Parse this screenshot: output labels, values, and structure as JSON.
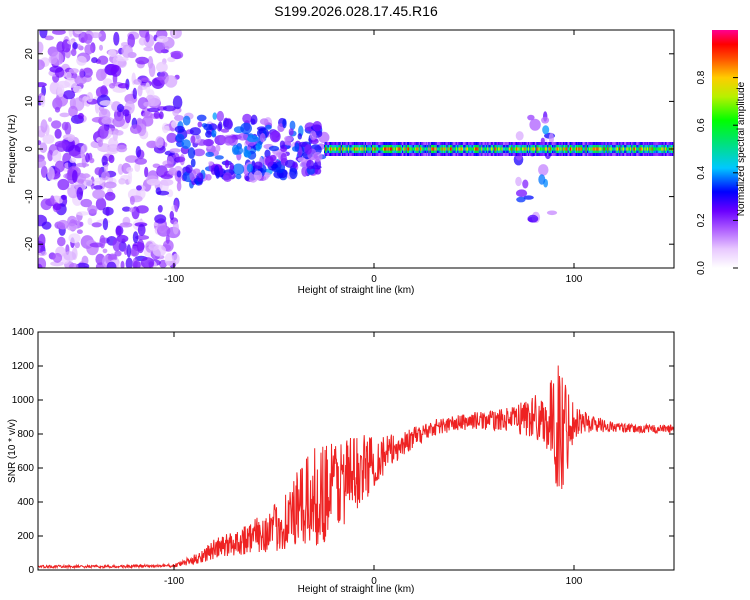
{
  "title": "S199.2026.028.17.45.R16",
  "colors": {
    "snr_line": "#ee2222",
    "axis": "#000000",
    "background": "#ffffff"
  },
  "chart_data": [
    {
      "type": "heatmap",
      "name": "spectrogram",
      "xlabel": "Height of straight line (km)",
      "ylabel": "Frequency (Hz)",
      "xlim": [
        -168,
        150
      ],
      "ylim": [
        -25,
        25
      ],
      "xticks": [
        -100,
        0,
        100
      ],
      "xtick_labels": [
        "-100",
        "0",
        "100"
      ],
      "yticks": [
        -20,
        -10,
        0,
        10,
        20
      ],
      "ytick_labels": [
        "-20",
        "-10",
        "0",
        "10",
        "20"
      ],
      "colorbar": {
        "label": "Normalized spectral amplitude",
        "range": [
          0.0,
          1.0
        ],
        "ticks": [
          0.0,
          0.2,
          0.4,
          0.6,
          0.8
        ],
        "tick_labels": [
          "0.0",
          "0.2",
          "0.4",
          "0.6",
          "0.8"
        ],
        "stops": [
          [
            0.0,
            "#ffffff"
          ],
          [
            0.08,
            "#e8c8ff"
          ],
          [
            0.16,
            "#b060ff"
          ],
          [
            0.24,
            "#6a00ff"
          ],
          [
            0.32,
            "#0000ff"
          ],
          [
            0.42,
            "#00c8ff"
          ],
          [
            0.52,
            "#00e080"
          ],
          [
            0.62,
            "#00ff00"
          ],
          [
            0.72,
            "#b8f000"
          ],
          [
            0.8,
            "#ffcc00"
          ],
          [
            0.88,
            "#ff5000"
          ],
          [
            0.94,
            "#ff0000"
          ],
          [
            1.0,
            "#ff0090"
          ]
        ]
      },
      "regions": [
        {
          "desc": "broadband noise",
          "x": [
            -168,
            -98
          ],
          "freq": [
            -25,
            25
          ],
          "amp": [
            0.05,
            0.28
          ]
        },
        {
          "desc": "converging noise",
          "x": [
            -98,
            -25
          ],
          "freq": [
            -8,
            8
          ],
          "amp": [
            0.1,
            0.4
          ]
        },
        {
          "desc": "narrow carrier",
          "x": [
            -25,
            150
          ],
          "freq": [
            -1.5,
            1.5
          ],
          "amp": [
            0.45,
            0.95
          ]
        },
        {
          "desc": "spike",
          "x": [
            72,
            90
          ],
          "freq": [
            -15,
            8
          ],
          "amp": [
            0.05,
            0.4
          ]
        }
      ]
    },
    {
      "type": "line",
      "name": "snr",
      "xlabel": "Height of straight line (km)",
      "ylabel": "SNR (10 * v/v)",
      "xlim": [
        -168,
        150
      ],
      "ylim": [
        0,
        1400
      ],
      "xticks": [
        -100,
        0,
        100
      ],
      "xtick_labels": [
        "-100",
        "0",
        "100"
      ],
      "yticks": [
        0,
        200,
        400,
        600,
        800,
        1000,
        1200,
        1400
      ],
      "ytick_labels": [
        "0",
        "200",
        "400",
        "600",
        "800",
        "1000",
        "1200",
        "1400"
      ],
      "series": [
        {
          "name": "SNR",
          "x": [
            -168,
            -130,
            -100,
            -90,
            -80,
            -70,
            -60,
            -50,
            -40,
            -30,
            -20,
            -10,
            0,
            10,
            20,
            30,
            40,
            50,
            60,
            70,
            75,
            80,
            85,
            90,
            93,
            95,
            97,
            100,
            110,
            120,
            130,
            140,
            150
          ],
          "y": [
            20,
            20,
            25,
            60,
            120,
            160,
            200,
            240,
            330,
            420,
            500,
            560,
            640,
            710,
            780,
            840,
            860,
            880,
            880,
            890,
            900,
            900,
            890,
            850,
            820,
            780,
            860,
            880,
            860,
            840,
            830,
            830,
            830
          ],
          "jitter": [
            8,
            8,
            10,
            30,
            60,
            80,
            100,
            140,
            220,
            300,
            300,
            240,
            160,
            90,
            60,
            50,
            50,
            50,
            60,
            70,
            120,
            140,
            140,
            300,
            450,
            400,
            250,
            100,
            50,
            30,
            25,
            25,
            25
          ]
        }
      ]
    }
  ]
}
